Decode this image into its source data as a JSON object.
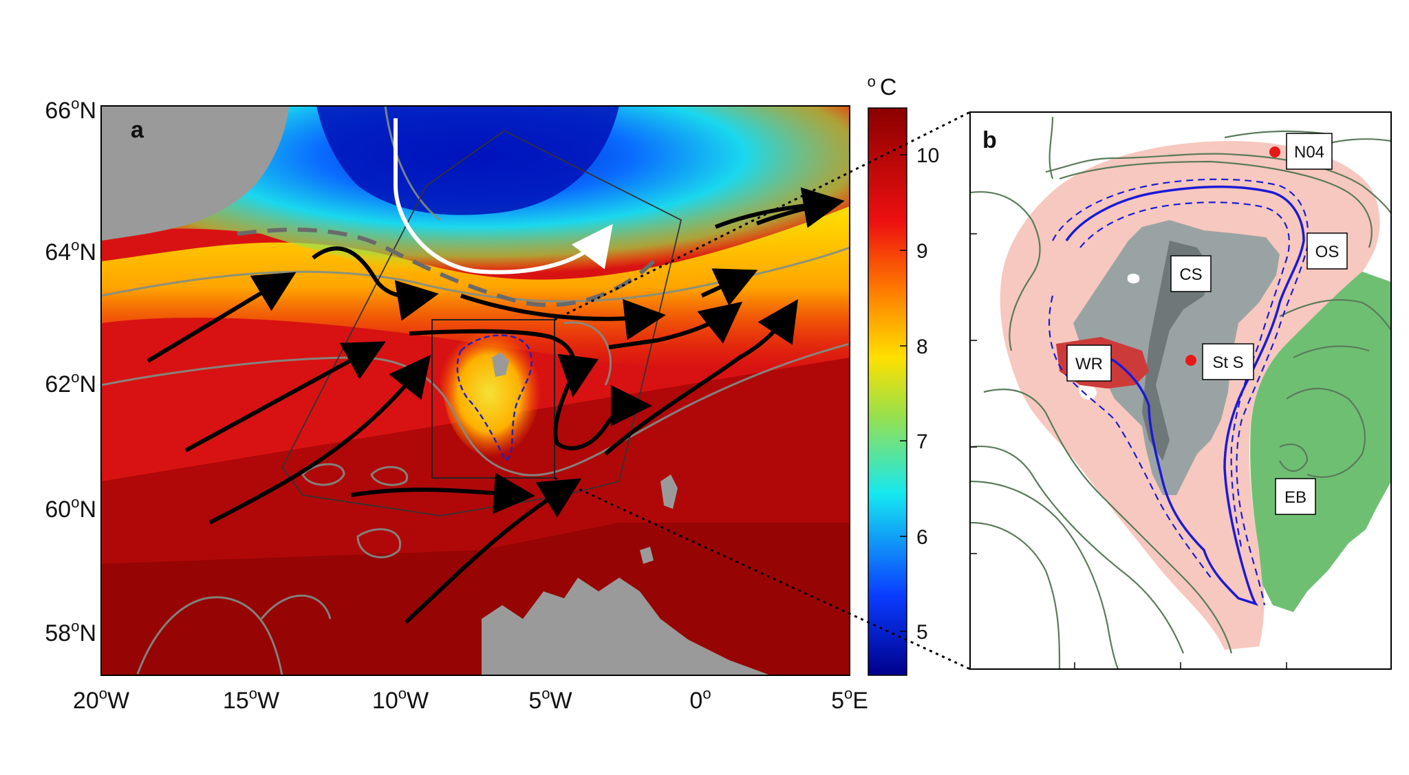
{
  "panel_a": {
    "letter": "a",
    "lat_labels": [
      {
        "deg": "66",
        "sup": "o",
        "hemi": "N"
      },
      {
        "deg": "64",
        "sup": "o",
        "hemi": "N"
      },
      {
        "deg": "62",
        "sup": "o",
        "hemi": "N"
      },
      {
        "deg": "60",
        "sup": "o",
        "hemi": "N"
      },
      {
        "deg": "58",
        "sup": "o",
        "hemi": "N"
      }
    ],
    "lon_labels": [
      {
        "deg": "20",
        "sup": "o",
        "hemi": "W"
      },
      {
        "deg": "15",
        "sup": "o",
        "hemi": "W"
      },
      {
        "deg": "10",
        "sup": "o",
        "hemi": "W"
      },
      {
        "deg": "5",
        "sup": "o",
        "hemi": "W"
      },
      {
        "deg": "0",
        "sup": "o",
        "hemi": ""
      },
      {
        "deg": "5",
        "sup": "o",
        "hemi": "E"
      }
    ]
  },
  "colorbar": {
    "unit_sup": "o",
    "unit": "C",
    "ticks": [
      "10",
      "9",
      "8",
      "7",
      "6",
      "5"
    ],
    "colors": {
      "cold": "#00008b",
      "blue": "#0a3cff",
      "cyan": "#16e8f0",
      "green": "#9be04a",
      "yellow": "#ffe000",
      "orange": "#ff7a00",
      "red": "#ee1010",
      "warm": "#8b0000"
    }
  },
  "panel_b": {
    "letter": "b",
    "labels": {
      "n04": "N04",
      "os": "OS",
      "cs": "CS",
      "wr": "WR",
      "sts": "St S",
      "eb": "EB"
    },
    "colors": {
      "shelf": "#f7c8bf",
      "wyville_ridge": "#cd3a3a",
      "eastern_basin": "#6fbf73",
      "shallow_bank": "#9aa3a3",
      "contour": "#5a7a5a",
      "boundary": "#1a1ad6",
      "station": "#e81818"
    }
  }
}
